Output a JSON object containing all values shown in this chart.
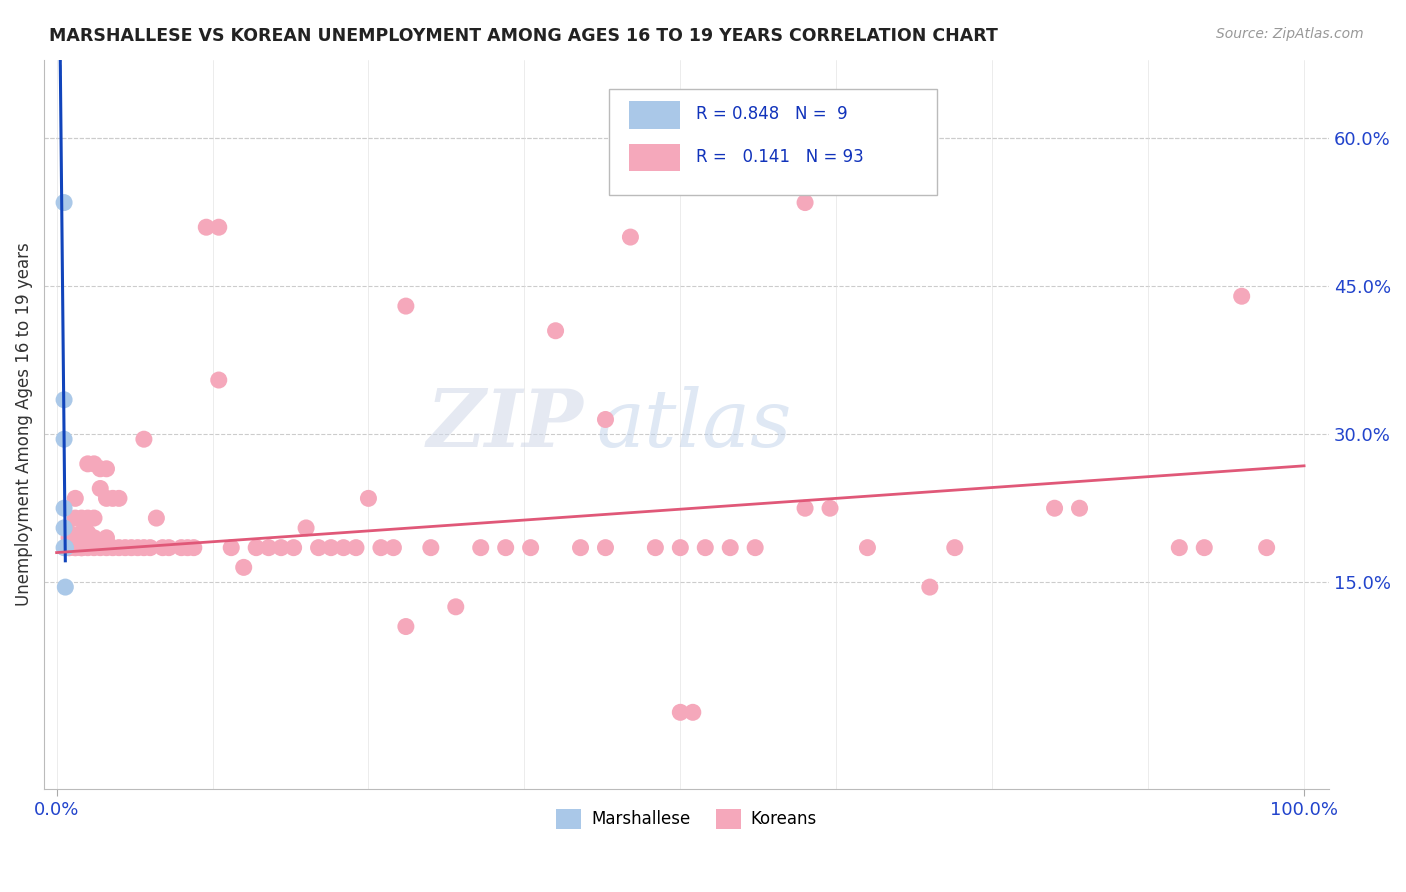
{
  "title": "MARSHALLESE VS KOREAN UNEMPLOYMENT AMONG AGES 16 TO 19 YEARS CORRELATION CHART",
  "source": "Source: ZipAtlas.com",
  "ylabel": "Unemployment Among Ages 16 to 19 years",
  "ytick_vals": [
    0.15,
    0.3,
    0.45,
    0.6
  ],
  "ytick_labels": [
    "15.0%",
    "30.0%",
    "45.0%",
    "60.0%"
  ],
  "xlim": [
    -0.01,
    1.02
  ],
  "ylim": [
    -0.06,
    0.68
  ],
  "legend_label1": "Marshallese",
  "legend_label2": "Koreans",
  "r1": "0.848",
  "n1": "9",
  "r2": "0.141",
  "n2": "93",
  "marshallese_color": "#aac8e8",
  "korean_color": "#f5a8bb",
  "trend_marshallese_color": "#1144bb",
  "trend_korean_color": "#e05878",
  "marshallese_x": [
    0.006,
    0.006,
    0.006,
    0.006,
    0.006,
    0.006,
    0.007,
    0.007,
    0.007
  ],
  "marshallese_y": [
    0.535,
    0.335,
    0.295,
    0.225,
    0.205,
    0.185,
    0.185,
    0.185,
    0.145
  ],
  "korean_x": [
    0.01,
    0.01,
    0.01,
    0.01,
    0.015,
    0.015,
    0.015,
    0.015,
    0.015,
    0.02,
    0.02,
    0.02,
    0.02,
    0.02,
    0.025,
    0.025,
    0.025,
    0.025,
    0.03,
    0.03,
    0.03,
    0.03,
    0.035,
    0.035,
    0.035,
    0.04,
    0.04,
    0.04,
    0.04,
    0.045,
    0.045,
    0.05,
    0.05,
    0.055,
    0.06,
    0.065,
    0.07,
    0.07,
    0.075,
    0.08,
    0.085,
    0.09,
    0.1,
    0.105,
    0.11,
    0.12,
    0.13,
    0.14,
    0.15,
    0.16,
    0.17,
    0.18,
    0.19,
    0.2,
    0.21,
    0.22,
    0.23,
    0.24,
    0.25,
    0.26,
    0.27,
    0.28,
    0.3,
    0.32,
    0.34,
    0.36,
    0.38,
    0.4,
    0.42,
    0.44,
    0.44,
    0.46,
    0.48,
    0.5,
    0.52,
    0.54,
    0.56,
    0.6,
    0.62,
    0.65,
    0.7,
    0.72,
    0.8,
    0.82,
    0.9,
    0.92,
    0.95,
    0.97,
    0.5,
    0.51,
    0.13,
    0.28,
    0.6
  ],
  "korean_y": [
    0.185,
    0.185,
    0.195,
    0.2,
    0.185,
    0.185,
    0.195,
    0.215,
    0.235,
    0.185,
    0.185,
    0.185,
    0.2,
    0.215,
    0.185,
    0.2,
    0.215,
    0.27,
    0.185,
    0.195,
    0.215,
    0.27,
    0.185,
    0.245,
    0.265,
    0.185,
    0.195,
    0.235,
    0.265,
    0.185,
    0.235,
    0.185,
    0.235,
    0.185,
    0.185,
    0.185,
    0.185,
    0.295,
    0.185,
    0.215,
    0.185,
    0.185,
    0.185,
    0.185,
    0.185,
    0.51,
    0.355,
    0.185,
    0.165,
    0.185,
    0.185,
    0.185,
    0.185,
    0.205,
    0.185,
    0.185,
    0.185,
    0.185,
    0.235,
    0.185,
    0.185,
    0.105,
    0.185,
    0.125,
    0.185,
    0.185,
    0.185,
    0.405,
    0.185,
    0.185,
    0.315,
    0.5,
    0.185,
    0.185,
    0.185,
    0.185,
    0.185,
    0.225,
    0.225,
    0.185,
    0.145,
    0.185,
    0.225,
    0.225,
    0.185,
    0.185,
    0.44,
    0.185,
    0.018,
    0.018,
    0.51,
    0.43,
    0.535
  ]
}
